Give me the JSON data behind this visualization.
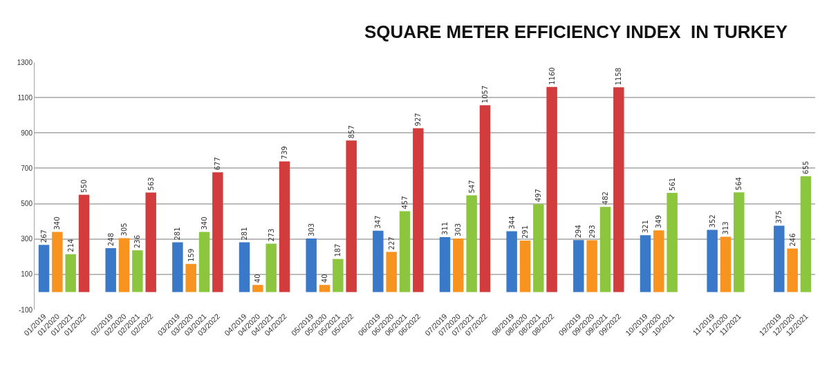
{
  "chart_data": {
    "type": "bar",
    "title": "SQUARE METER EFFICIENCY INDEX  IN TURKEY",
    "categories": [
      "01/2019",
      "01/2020",
      "01/2021",
      "01/2022",
      null,
      "02/2019",
      "02/2020",
      "02/2021",
      "02/2022",
      null,
      "03/2019",
      "03/2020",
      "03/2021",
      "03/2022",
      null,
      "04/2019",
      "04/2020",
      "04/2021",
      "04/2022",
      null,
      "05/2019",
      "05/2020",
      "05/2021",
      "05/2022",
      null,
      "06/2019",
      "06/2020",
      "06/2021",
      "06/2022",
      null,
      "07/2019",
      "07/2020",
      "07/2021",
      "07/2022",
      null,
      "08/2019",
      "08/2020",
      "08/2021",
      "08/2022",
      null,
      "09/2019",
      "09/2020",
      "09/2021",
      "09/2022",
      null,
      "10/2019",
      "10/2020",
      "10/2021",
      null,
      null,
      "11/2019",
      "11/2020",
      "11/2021",
      null,
      null,
      "12/2019",
      "12/2020",
      "12/2021"
    ],
    "values": [
      267,
      340,
      214,
      550,
      null,
      248,
      305,
      236,
      563,
      null,
      281,
      159,
      340,
      677,
      null,
      281,
      40,
      273,
      739,
      null,
      303,
      40,
      187,
      857,
      null,
      347,
      227,
      457,
      927,
      null,
      311,
      303,
      547,
      1057,
      null,
      344,
      291,
      497,
      1160,
      null,
      294,
      293,
      482,
      1158,
      null,
      321,
      349,
      561,
      null,
      null,
      352,
      313,
      564,
      null,
      null,
      375,
      246,
      655
    ],
    "colors": [
      "#3a78c8",
      "#f7931e",
      "#8cc63f",
      "#d23c3c",
      null,
      "#3a78c8",
      "#f7931e",
      "#8cc63f",
      "#d23c3c",
      null,
      "#3a78c8",
      "#f7931e",
      "#8cc63f",
      "#d23c3c",
      null,
      "#3a78c8",
      "#f7931e",
      "#8cc63f",
      "#d23c3c",
      null,
      "#3a78c8",
      "#f7931e",
      "#8cc63f",
      "#d23c3c",
      null,
      "#3a78c8",
      "#f7931e",
      "#8cc63f",
      "#d23c3c",
      null,
      "#3a78c8",
      "#f7931e",
      "#8cc63f",
      "#d23c3c",
      null,
      "#3a78c8",
      "#f7931e",
      "#8cc63f",
      "#d23c3c",
      null,
      "#3a78c8",
      "#f7931e",
      "#8cc63f",
      "#d23c3c",
      null,
      "#3a78c8",
      "#f7931e",
      "#8cc63f",
      null,
      null,
      "#3a78c8",
      "#f7931e",
      "#8cc63f",
      null,
      null,
      "#3a78c8",
      "#f7931e",
      "#8cc63f"
    ],
    "ylim": [
      -100,
      1300
    ],
    "yticks": [
      -100,
      100,
      300,
      500,
      700,
      900,
      1100,
      1300
    ],
    "grid": "y",
    "data_labels": true,
    "legend": false
  }
}
